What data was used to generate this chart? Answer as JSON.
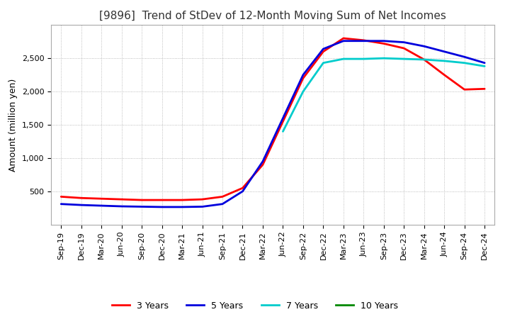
{
  "title": "[9896]  Trend of StDev of 12-Month Moving Sum of Net Incomes",
  "ylabel": "Amount (million yen)",
  "title_fontsize": 11,
  "label_fontsize": 9,
  "tick_fontsize": 8,
  "legend_fontsize": 9,
  "background_color": "#ffffff",
  "grid_color": "#aaaaaa",
  "x_labels": [
    "Sep-19",
    "Dec-19",
    "Mar-20",
    "Jun-20",
    "Sep-20",
    "Dec-20",
    "Mar-21",
    "Jun-21",
    "Sep-21",
    "Dec-21",
    "Mar-22",
    "Jun-22",
    "Sep-22",
    "Dec-22",
    "Mar-23",
    "Jun-23",
    "Sep-23",
    "Dec-23",
    "Mar-24",
    "Jun-24",
    "Sep-24",
    "Dec-24"
  ],
  "series": {
    "3 Years": {
      "color": "#ff0000",
      "values": [
        420,
        400,
        390,
        380,
        370,
        370,
        370,
        380,
        420,
        550,
        900,
        1550,
        2200,
        2600,
        2800,
        2770,
        2720,
        2650,
        2480,
        2250,
        2030,
        2040
      ]
    },
    "5 Years": {
      "color": "#0000dd",
      "values": [
        310,
        295,
        285,
        275,
        270,
        265,
        265,
        270,
        310,
        500,
        950,
        1600,
        2250,
        2640,
        2760,
        2760,
        2760,
        2740,
        2680,
        2600,
        2520,
        2430
      ]
    },
    "7 Years": {
      "color": "#00cccc",
      "values": [
        null,
        null,
        null,
        null,
        null,
        null,
        null,
        null,
        null,
        null,
        null,
        1400,
        2000,
        2430,
        2490,
        2490,
        2500,
        2490,
        2480,
        2460,
        2430,
        2380
      ]
    },
    "10 Years": {
      "color": "#008800",
      "values": [
        null,
        null,
        null,
        null,
        null,
        null,
        null,
        null,
        null,
        null,
        null,
        null,
        null,
        null,
        null,
        null,
        null,
        null,
        null,
        null,
        null,
        null
      ]
    }
  },
  "ylim": [
    0,
    3000
  ],
  "yticks": [
    500,
    1000,
    1500,
    2000,
    2500
  ]
}
